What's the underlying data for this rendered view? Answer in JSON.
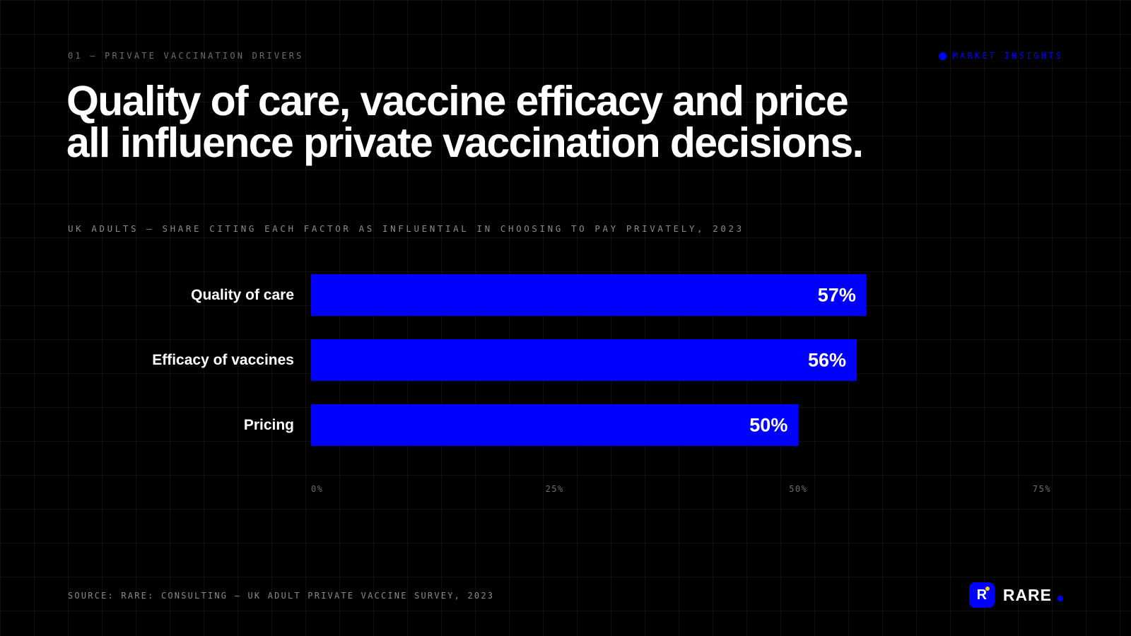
{
  "eyebrow": "01 — PRIVATE VACCINATION DRIVERS",
  "tag": {
    "label": "MARKET INSIGHTS"
  },
  "title": "Quality of care, vaccine efficacy and price all influence private vaccination decisions.",
  "subtitle": "UK ADULTS — SHARE CITING EACH FACTOR AS INFLUENTIAL IN CHOOSING TO PAY PRIVATELY, 2023",
  "source": "SOURCE: RARE: CONSULTING — UK ADULT PRIVATE VACCINE SURVEY, 2023",
  "brand": {
    "mark": "R",
    "name": "RARE"
  },
  "colors": {
    "background": "#000000",
    "accent": "#0000ff",
    "bar": "#0000ff",
    "text": "#ffffff",
    "muted": "#8a8a8a",
    "brand_highlight": "#ffd400"
  },
  "chart_data": {
    "type": "bar",
    "orientation": "horizontal",
    "categories": [
      "Quality of care",
      "Efficacy of vaccines",
      "Pricing"
    ],
    "values": [
      57,
      56,
      50
    ],
    "value_labels": [
      "57%",
      "56%",
      "50%"
    ],
    "xlim": [
      0,
      75
    ],
    "x_ticks": [
      0,
      25,
      50,
      75
    ],
    "x_tick_labels": [
      "0%",
      "25%",
      "50%",
      "75%"
    ],
    "grid": true
  }
}
